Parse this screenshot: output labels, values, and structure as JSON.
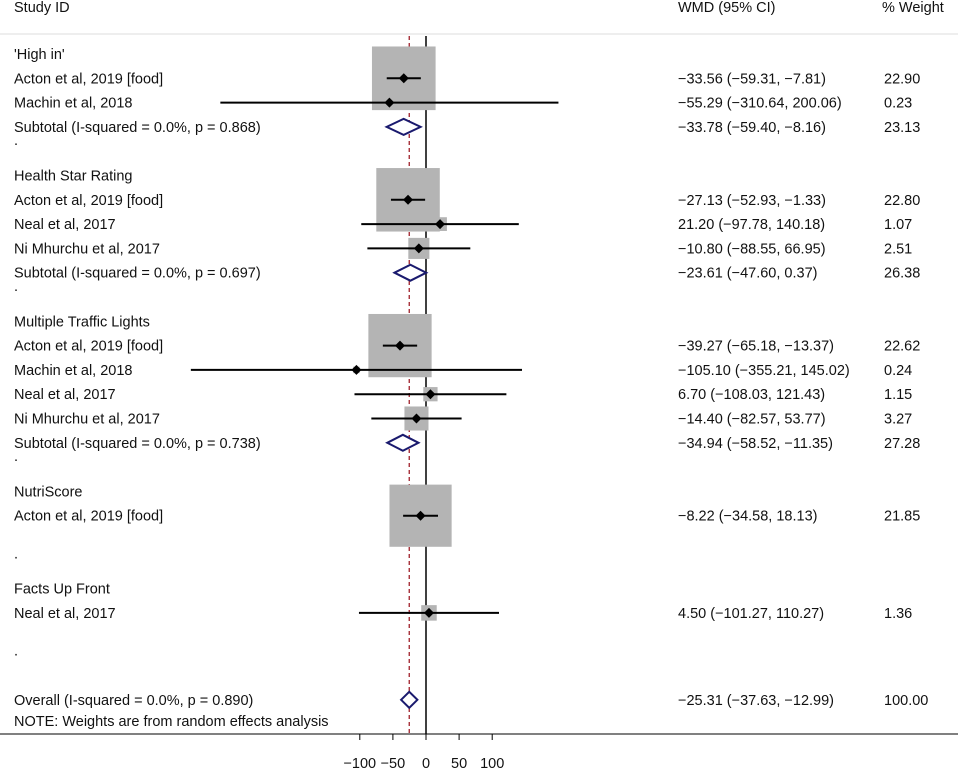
{
  "chart_data": {
    "type": "forest",
    "columns": {
      "study": "Study ID",
      "effect": "WMD (95% CI)",
      "weight": "% Weight"
    },
    "x_ticks": [
      -100,
      -50,
      0,
      50,
      100
    ],
    "x_tick_labels": [
      "−100",
      "−50",
      "0",
      "50",
      "100"
    ],
    "null_line": 0,
    "overall_line": -25.31,
    "groups": [
      {
        "name": "'High in'",
        "studies": [
          {
            "label": "Acton et al, 2019 [food]",
            "estimate": -33.56,
            "lower": -59.31,
            "upper": -7.81,
            "ci_text": "−33.56 (−59.31, −7.81)",
            "weight_text": "22.90",
            "weight": 22.9
          },
          {
            "label": "Machin et al, 2018",
            "estimate": -55.29,
            "lower": -310.64,
            "upper": 200.06,
            "ci_text": "−55.29 (−310.64, 200.06)",
            "weight_text": "0.23",
            "weight": 0.23
          }
        ],
        "subtotal": {
          "label": "Subtotal  (I-squared = 0.0%, p = 0.868)",
          "estimate": -33.78,
          "lower": -59.4,
          "upper": -8.16,
          "ci_text": "−33.78 (−59.40, −8.16)",
          "weight_text": "23.13"
        }
      },
      {
        "name": "Health Star Rating",
        "studies": [
          {
            "label": "Acton et al, 2019 [food]",
            "estimate": -27.13,
            "lower": -52.93,
            "upper": -1.33,
            "ci_text": "−27.13 (−52.93, −1.33)",
            "weight_text": "22.80",
            "weight": 22.8
          },
          {
            "label": "Neal et al, 2017",
            "estimate": 21.2,
            "lower": -97.78,
            "upper": 140.18,
            "ci_text": "21.20 (−97.78, 140.18)",
            "weight_text": "1.07",
            "weight": 1.07
          },
          {
            "label": "Ni Mhurchu et al, 2017",
            "estimate": -10.8,
            "lower": -88.55,
            "upper": 66.95,
            "ci_text": "−10.80 (−88.55, 66.95)",
            "weight_text": "2.51",
            "weight": 2.51
          }
        ],
        "subtotal": {
          "label": "Subtotal  (I-squared = 0.0%, p = 0.697)",
          "estimate": -23.61,
          "lower": -47.6,
          "upper": 0.37,
          "ci_text": "−23.61 (−47.60, 0.37)",
          "weight_text": "26.38"
        }
      },
      {
        "name": "Multiple Traffic Lights",
        "studies": [
          {
            "label": "Acton et al, 2019 [food]",
            "estimate": -39.27,
            "lower": -65.18,
            "upper": -13.37,
            "ci_text": "−39.27 (−65.18, −13.37)",
            "weight_text": "22.62",
            "weight": 22.62
          },
          {
            "label": "Machin et al, 2018",
            "estimate": -105.1,
            "lower": -355.21,
            "upper": 145.02,
            "ci_text": "−105.10 (−355.21, 145.02)",
            "weight_text": "0.24",
            "weight": 0.24
          },
          {
            "label": "Neal et al, 2017",
            "estimate": 6.7,
            "lower": -108.03,
            "upper": 121.43,
            "ci_text": "6.70 (−108.03, 121.43)",
            "weight_text": "1.15",
            "weight": 1.15
          },
          {
            "label": "Ni Mhurchu et al, 2017",
            "estimate": -14.4,
            "lower": -82.57,
            "upper": 53.77,
            "ci_text": "−14.40 (−82.57, 53.77)",
            "weight_text": "3.27",
            "weight": 3.27
          }
        ],
        "subtotal": {
          "label": "Subtotal  (I-squared = 0.0%, p = 0.738)",
          "estimate": -34.94,
          "lower": -58.52,
          "upper": -11.35,
          "ci_text": "−34.94 (−58.52, −11.35)",
          "weight_text": "27.28"
        }
      },
      {
        "name": "NutriScore",
        "studies": [
          {
            "label": "Acton et al, 2019 [food]",
            "estimate": -8.22,
            "lower": -34.58,
            "upper": 18.13,
            "ci_text": "−8.22 (−34.58, 18.13)",
            "weight_text": "21.85",
            "weight": 21.85
          }
        ],
        "subtotal": null
      },
      {
        "name": "Facts Up Front",
        "studies": [
          {
            "label": "Neal et al, 2017",
            "estimate": 4.5,
            "lower": -101.27,
            "upper": 110.27,
            "ci_text": "4.50 (−101.27, 110.27)",
            "weight_text": "1.36",
            "weight": 1.36
          }
        ],
        "subtotal": null
      }
    ],
    "overall": {
      "label": "Overall  (I-squared = 0.0%, p = 0.890)",
      "estimate": -25.31,
      "lower": -37.63,
      "upper": -12.99,
      "ci_text": "−25.31 (−37.63, −12.99)",
      "weight_text": "100.00"
    },
    "note": "NOTE: Weights are from random effects analysis",
    "colors": {
      "box": "#b4b4b4",
      "diamond": "#1a1a6e",
      "overall_line": "#a0202a",
      "line": "#000000"
    }
  }
}
